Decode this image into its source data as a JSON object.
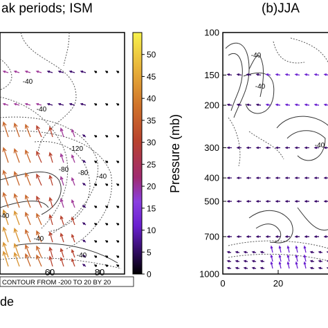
{
  "chart_data": [
    {
      "type": "vector-contour",
      "title": "ak periods; ISM",
      "xlabel": "de",
      "ylabel": "",
      "xlim": [
        40,
        90
      ],
      "x_ticks": [
        "60",
        "80"
      ],
      "colorbar": {
        "ticks": [
          "0",
          "5",
          "10",
          "15",
          "20",
          "25",
          "30",
          "35",
          "40",
          "45",
          "50"
        ],
        "range": [
          0,
          55
        ]
      },
      "contour_labels": [
        "-40",
        "-40",
        "-80",
        "-120",
        "-80",
        "-40",
        "-40",
        "-40",
        "-40"
      ],
      "footer_note": "CONTOUR FROM -200 TO 20 BY 20"
    },
    {
      "type": "vector-contour",
      "title": "(b)JJA",
      "ylabel": "Pressure (mb)",
      "pressure_levels": [
        100,
        150,
        200,
        300,
        400,
        500,
        700,
        1000
      ],
      "y_ticks": [
        "100",
        "150",
        "200",
        "300",
        "400",
        "500",
        "700",
        "1000"
      ],
      "x_ticks": [
        "0",
        "20"
      ],
      "xlim": [
        0,
        40
      ],
      "contour_labels": [
        "-40",
        "-40",
        "-40"
      ]
    }
  ],
  "colors": {
    "scale": [
      "#000000",
      "#3a0a6b",
      "#6a20d0",
      "#8a3fe0",
      "#a03a9a",
      "#b8422e",
      "#c8662a",
      "#d8922e",
      "#e8c23a",
      "#f5ee4a"
    ]
  }
}
